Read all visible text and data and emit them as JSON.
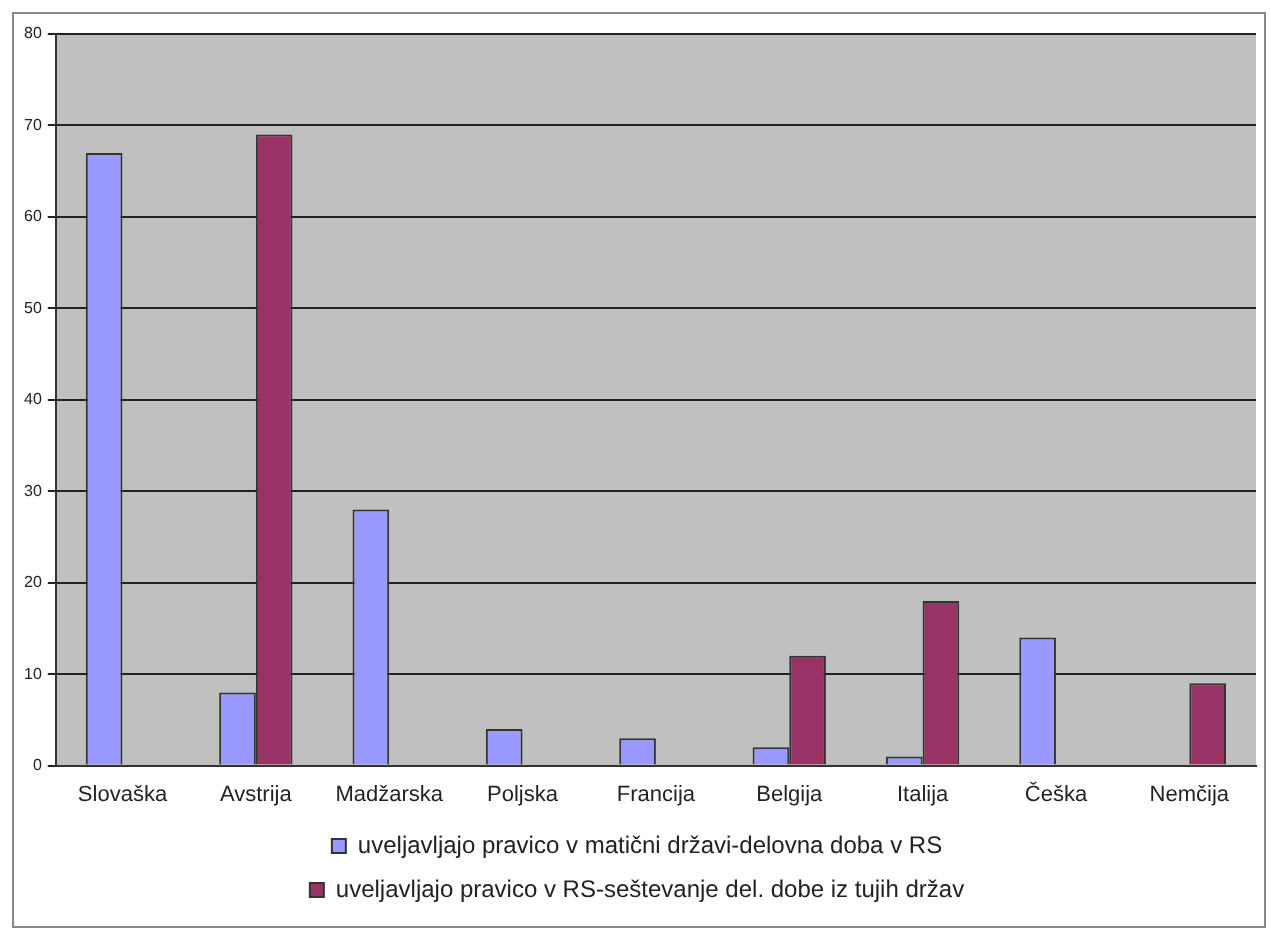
{
  "chart_data": {
    "type": "bar",
    "categories": [
      "Slovaška",
      "Avstrija",
      "Madžarska",
      "Poljska",
      "Francija",
      "Belgija",
      "Italija",
      "Češka",
      "Nemčija"
    ],
    "series": [
      {
        "name": "uveljavljajo pravico v matični državi-delovna doba v RS",
        "color": "#9999ff",
        "values": [
          67,
          8,
          28,
          4,
          3,
          2,
          1,
          14,
          null
        ]
      },
      {
        "name": "uveljavljajo pravico v RS-seštevanje del. dobe iz tujih držav",
        "color": "#993366",
        "values": [
          null,
          69,
          null,
          null,
          null,
          12,
          18,
          null,
          9
        ]
      }
    ],
    "ylim": [
      0,
      80
    ],
    "yticks": [
      0,
      10,
      20,
      30,
      40,
      50,
      60,
      70,
      80
    ],
    "grid": "y",
    "legend": "bottom"
  }
}
